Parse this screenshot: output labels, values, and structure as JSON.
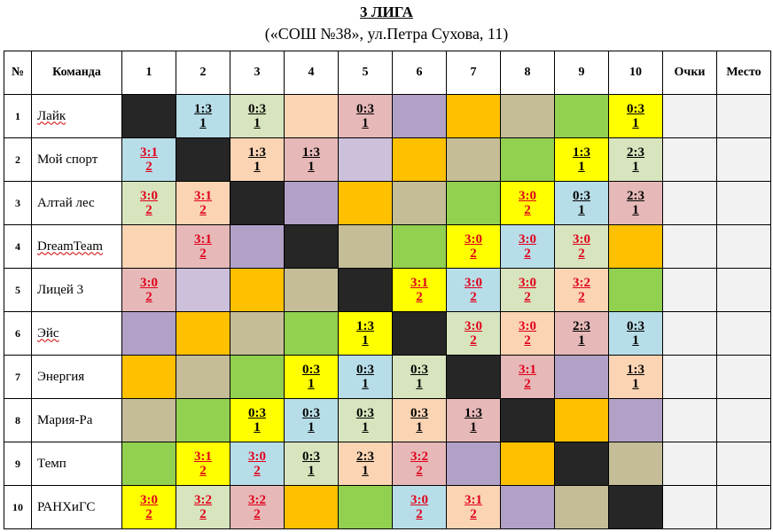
{
  "title": "3 ЛИГА",
  "subtitle": "(«СОШ №38», ул.Петра Сухова, 11)",
  "columns": {
    "num": "№",
    "team": "Команда",
    "opponents": [
      "1",
      "2",
      "3",
      "4",
      "5",
      "6",
      "7",
      "8",
      "9",
      "10"
    ],
    "points": "Очки",
    "place": "Место"
  },
  "colors": {
    "dark": "#262626",
    "blue": "#b7dde8",
    "green": "#d7e4bd",
    "peach": "#fbd4b4",
    "pink": "#e6b9b8",
    "purple": "#b2a1c7",
    "orange": "#ffc000",
    "tan": "#c4bd97",
    "lime": "#92d050",
    "yellow": "#ffff00",
    "lavender": "#ccc0da"
  },
  "teams": [
    {
      "num": "1",
      "name": "Лайк",
      "spell": true,
      "cells": [
        {
          "c": "dark"
        },
        {
          "c": "blue",
          "s": "1:3",
          "p": "1",
          "t": "blk"
        },
        {
          "c": "green",
          "s": "0:3",
          "p": "1",
          "t": "blk"
        },
        {
          "c": "peach"
        },
        {
          "c": "pink",
          "s": "0:3",
          "p": "1",
          "t": "blk"
        },
        {
          "c": "purple"
        },
        {
          "c": "orange"
        },
        {
          "c": "tan"
        },
        {
          "c": "lime"
        },
        {
          "c": "yellow",
          "s": "0:3",
          "p": "1",
          "t": "blk"
        }
      ]
    },
    {
      "num": "2",
      "name": "Мой спорт",
      "spell": false,
      "cells": [
        {
          "c": "blue",
          "s": "3:1",
          "p": "2",
          "t": "red"
        },
        {
          "c": "dark"
        },
        {
          "c": "peach",
          "s": "1:3",
          "p": "1",
          "t": "blk"
        },
        {
          "c": "pink",
          "s": "1:3",
          "p": "1",
          "t": "blk"
        },
        {
          "c": "lavender"
        },
        {
          "c": "orange"
        },
        {
          "c": "tan"
        },
        {
          "c": "lime"
        },
        {
          "c": "yellow",
          "s": "1:3",
          "p": "1",
          "t": "blk"
        },
        {
          "c": "green",
          "s": "2:3",
          "p": "1",
          "t": "blk"
        }
      ]
    },
    {
      "num": "3",
      "name": "Алтай лес",
      "spell": false,
      "cells": [
        {
          "c": "green",
          "s": "3:0",
          "p": "2",
          "t": "red"
        },
        {
          "c": "peach",
          "s": "3:1",
          "p": "2",
          "t": "red"
        },
        {
          "c": "dark"
        },
        {
          "c": "purple"
        },
        {
          "c": "orange"
        },
        {
          "c": "tan"
        },
        {
          "c": "lime"
        },
        {
          "c": "yellow",
          "s": "3:0",
          "p": "2",
          "t": "red"
        },
        {
          "c": "blue",
          "s": "0:3",
          "p": "1",
          "t": "blk"
        },
        {
          "c": "pink",
          "s": "2:3",
          "p": "1",
          "t": "blk"
        }
      ]
    },
    {
      "num": "4",
      "name": "DreamTeam",
      "spell": true,
      "cells": [
        {
          "c": "peach"
        },
        {
          "c": "pink",
          "s": "3:1",
          "p": "2",
          "t": "red"
        },
        {
          "c": "purple"
        },
        {
          "c": "dark"
        },
        {
          "c": "tan"
        },
        {
          "c": "lime"
        },
        {
          "c": "yellow",
          "s": "3:0",
          "p": "2",
          "t": "red"
        },
        {
          "c": "blue",
          "s": "3:0",
          "p": "2",
          "t": "red"
        },
        {
          "c": "green",
          "s": "3:0",
          "p": "2",
          "t": "red"
        },
        {
          "c": "orange"
        }
      ]
    },
    {
      "num": "5",
      "name": "Лицей 3",
      "spell": false,
      "cells": [
        {
          "c": "pink",
          "s": "3:0",
          "p": "2",
          "t": "red"
        },
        {
          "c": "lavender"
        },
        {
          "c": "orange"
        },
        {
          "c": "tan"
        },
        {
          "c": "dark"
        },
        {
          "c": "yellow",
          "s": "3:1",
          "p": "2",
          "t": "red"
        },
        {
          "c": "blue",
          "s": "3:0",
          "p": "2",
          "t": "red"
        },
        {
          "c": "green",
          "s": "3:0",
          "p": "2",
          "t": "red"
        },
        {
          "c": "peach",
          "s": "3:2",
          "p": "2",
          "t": "red"
        },
        {
          "c": "lime"
        }
      ]
    },
    {
      "num": "6",
      "name": "Эйс",
      "spell": true,
      "cells": [
        {
          "c": "purple"
        },
        {
          "c": "orange"
        },
        {
          "c": "tan"
        },
        {
          "c": "lime"
        },
        {
          "c": "yellow",
          "s": "1:3",
          "p": "1",
          "t": "blk"
        },
        {
          "c": "dark"
        },
        {
          "c": "green",
          "s": "3:0",
          "p": "2",
          "t": "red"
        },
        {
          "c": "peach",
          "s": "3:0",
          "p": "2",
          "t": "red"
        },
        {
          "c": "pink",
          "s": "2:3",
          "p": "1",
          "t": "blk"
        },
        {
          "c": "blue",
          "s": "0:3",
          "p": "1",
          "t": "blk"
        }
      ]
    },
    {
      "num": "7",
      "name": "Энергия",
      "spell": false,
      "cells": [
        {
          "c": "orange"
        },
        {
          "c": "tan"
        },
        {
          "c": "lime"
        },
        {
          "c": "yellow",
          "s": "0:3",
          "p": "1",
          "t": "blk"
        },
        {
          "c": "blue",
          "s": "0:3",
          "p": "1",
          "t": "blk"
        },
        {
          "c": "green",
          "s": "0:3",
          "p": "1",
          "t": "blk"
        },
        {
          "c": "dark"
        },
        {
          "c": "pink",
          "s": "3:1",
          "p": "2",
          "t": "red"
        },
        {
          "c": "purple"
        },
        {
          "c": "peach",
          "s": "1:3",
          "p": "1",
          "t": "blk"
        }
      ]
    },
    {
      "num": "8",
      "name": "Мария-Ра",
      "spell": false,
      "cells": [
        {
          "c": "tan"
        },
        {
          "c": "lime"
        },
        {
          "c": "yellow",
          "s": "0:3",
          "p": "1",
          "t": "blk"
        },
        {
          "c": "blue",
          "s": "0:3",
          "p": "1",
          "t": "blk"
        },
        {
          "c": "green",
          "s": "0:3",
          "p": "1",
          "t": "blk"
        },
        {
          "c": "peach",
          "s": "0:3",
          "p": "1",
          "t": "blk"
        },
        {
          "c": "pink",
          "s": "1:3",
          "p": "1",
          "t": "blk"
        },
        {
          "c": "dark"
        },
        {
          "c": "orange"
        },
        {
          "c": "purple"
        }
      ]
    },
    {
      "num": "9",
      "name": "Темп",
      "spell": false,
      "cells": [
        {
          "c": "lime"
        },
        {
          "c": "yellow",
          "s": "3:1",
          "p": "2",
          "t": "red"
        },
        {
          "c": "blue",
          "s": "3:0",
          "p": "2",
          "t": "red"
        },
        {
          "c": "green",
          "s": "0:3",
          "p": "1",
          "t": "blk"
        },
        {
          "c": "peach",
          "s": "2:3",
          "p": "1",
          "t": "blk"
        },
        {
          "c": "pink",
          "s": "3:2",
          "p": "2",
          "t": "red"
        },
        {
          "c": "purple"
        },
        {
          "c": "orange"
        },
        {
          "c": "dark"
        },
        {
          "c": "tan"
        }
      ]
    },
    {
      "num": "10",
      "name": "РАНХиГС",
      "spell": false,
      "cells": [
        {
          "c": "yellow",
          "s": "3:0",
          "p": "2",
          "t": "red"
        },
        {
          "c": "green",
          "s": "3:2",
          "p": "2",
          "t": "red"
        },
        {
          "c": "pink",
          "s": "3:2",
          "p": "2",
          "t": "red"
        },
        {
          "c": "orange"
        },
        {
          "c": "lime"
        },
        {
          "c": "blue",
          "s": "3:0",
          "p": "2",
          "t": "red"
        },
        {
          "c": "peach",
          "s": "3:1",
          "p": "2",
          "t": "red"
        },
        {
          "c": "purple"
        },
        {
          "c": "tan"
        },
        {
          "c": "dark"
        }
      ]
    }
  ]
}
